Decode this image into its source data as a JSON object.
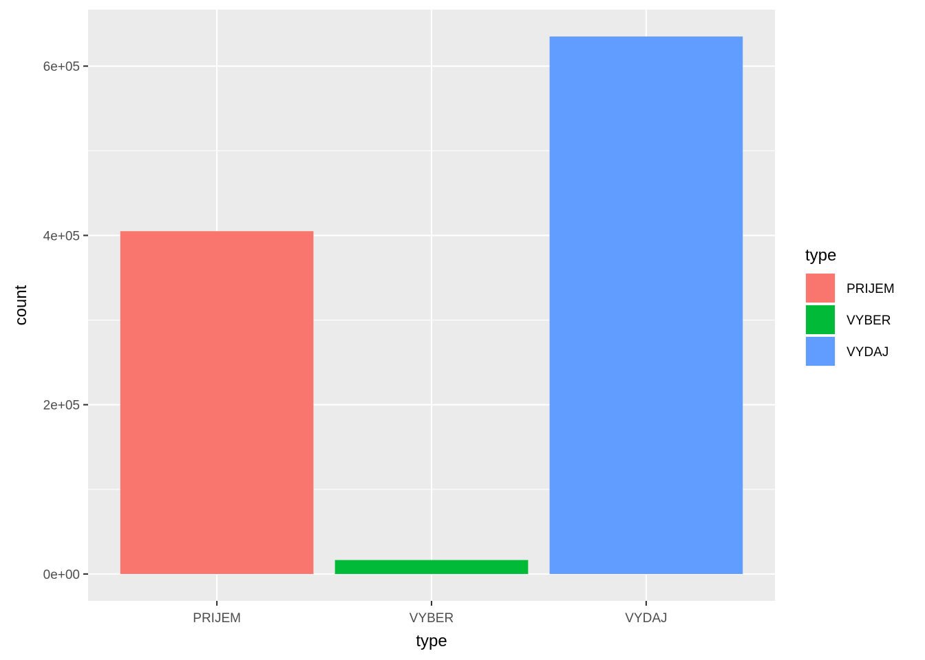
{
  "chart_data": {
    "type": "bar",
    "categories": [
      "PRIJEM",
      "VYBER",
      "VYDAJ"
    ],
    "values": [
      405000,
      16500,
      635000
    ],
    "colors": [
      "#F8766D",
      "#00BA38",
      "#619CFF"
    ],
    "xlabel": "type",
    "ylabel": "count",
    "ylim": [
      -31750,
      666750
    ],
    "yticks": [
      0,
      200000,
      400000,
      600000
    ],
    "ytick_labels": [
      "0e+00",
      "2e+05",
      "4e+05",
      "6e+05"
    ],
    "grid": true,
    "legend": {
      "title": "type",
      "position": "right",
      "entries": [
        "PRIJEM",
        "VYBER",
        "VYDAJ"
      ]
    },
    "panel_background": "#EBEBEB",
    "grid_color": "#FFFFFF"
  }
}
